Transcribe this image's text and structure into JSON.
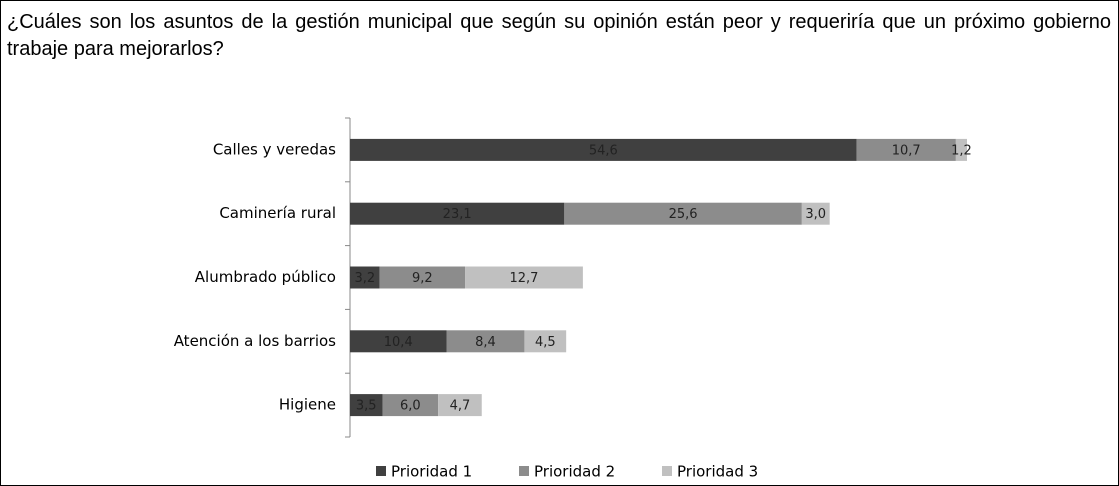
{
  "chart_data": {
    "type": "stacked_barh",
    "title": "¿Cuáles son los asuntos de la gestión municipal que según su opinión están peor y requeriría que un próximo gobierno trabaje para mejorarlos?",
    "categories": [
      "Calles y veredas",
      "Caminería rural",
      "Alumbrado público",
      "Atención a los barrios",
      "Higiene"
    ],
    "series": [
      {
        "name": "Prioridad 1",
        "color": "#404040",
        "values": [
          54.6,
          23.1,
          3.2,
          10.4,
          3.5
        ],
        "value_labels": [
          "54,6",
          "23,1",
          "3,2",
          "10,4",
          "3,5"
        ]
      },
      {
        "name": "Prioridad 2",
        "color": "#8c8c8c",
        "values": [
          10.7,
          25.6,
          9.2,
          8.4,
          6.0
        ],
        "value_labels": [
          "10,7",
          "25,6",
          "9,2",
          "8,4",
          "6,0"
        ]
      },
      {
        "name": "Prioridad 3",
        "color": "#c0c0c0",
        "values": [
          1.2,
          3.0,
          12.7,
          4.5,
          4.7
        ],
        "value_labels": [
          "1,2",
          "3,0",
          "12,7",
          "4,5",
          "4,7"
        ]
      }
    ],
    "legend": "bottom"
  }
}
